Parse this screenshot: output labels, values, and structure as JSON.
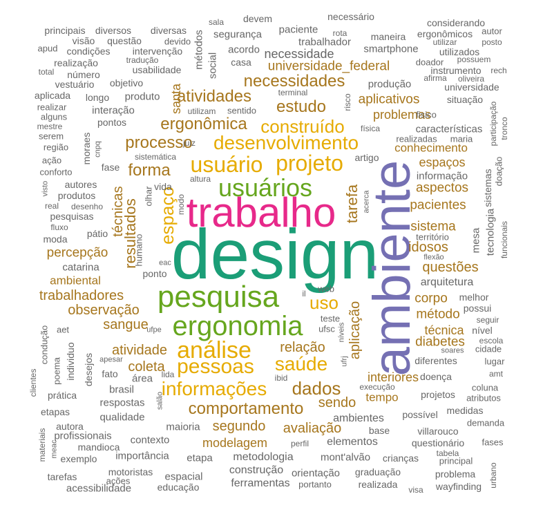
{
  "words": [
    {
      "text": "design",
      "color": "#1b9e77"
    },
    {
      "text": "ambiente",
      "color": "#7570b3"
    },
    {
      "text": "trabalho",
      "color": "#e7298a"
    },
    {
      "text": "pesquisa",
      "color": "#66a61e"
    },
    {
      "text": "ergonomia",
      "color": "#66a61e"
    },
    {
      "text": "usuários",
      "color": "#66a61e"
    },
    {
      "text": "usuário",
      "color": "#e6ab02"
    },
    {
      "text": "projeto",
      "color": "#e6ab02"
    },
    {
      "text": "desenvolvimento",
      "color": "#e6ab02"
    },
    {
      "text": "construído",
      "color": "#e6ab02"
    },
    {
      "text": "análise",
      "color": "#e6ab02"
    },
    {
      "text": "pessoas",
      "color": "#e6ab02"
    },
    {
      "text": "saúde",
      "color": "#e6ab02"
    },
    {
      "text": "informações",
      "color": "#e6ab02"
    },
    {
      "text": "uso",
      "color": "#e6ab02"
    },
    {
      "text": "espaço",
      "color": "#e6ab02"
    },
    {
      "text": "comportamento",
      "color": "#a6761d"
    },
    {
      "text": "dados",
      "color": "#a6761d"
    },
    {
      "text": "ergonômica",
      "color": "#a6761d"
    },
    {
      "text": "atividades",
      "color": "#a6761d"
    },
    {
      "text": "necessidades",
      "color": "#a6761d"
    },
    {
      "text": "estudo",
      "color": "#a6761d"
    },
    {
      "text": "processo",
      "color": "#a6761d"
    },
    {
      "text": "forma",
      "color": "#a6761d"
    },
    {
      "text": "resultados",
      "color": "#a6761d"
    },
    {
      "text": "tarefa",
      "color": "#a6761d"
    },
    {
      "text": "técnicas",
      "color": "#a6761d"
    },
    {
      "text": "aplicação",
      "color": "#a6761d"
    },
    {
      "text": "relação",
      "color": "#a6761d"
    },
    {
      "text": "sendo",
      "color": "#a6761d"
    },
    {
      "text": "segundo",
      "color": "#a6761d"
    },
    {
      "text": "avaliação",
      "color": "#a6761d"
    },
    {
      "text": "modelagem",
      "color": "#a6761d"
    },
    {
      "text": "atividade",
      "color": "#a6761d"
    },
    {
      "text": "coleta",
      "color": "#a6761d"
    },
    {
      "text": "sangue",
      "color": "#a6761d"
    },
    {
      "text": "observação",
      "color": "#a6761d"
    },
    {
      "text": "trabalhadores",
      "color": "#a6761d"
    },
    {
      "text": "percepção",
      "color": "#a6761d"
    },
    {
      "text": "ambiental",
      "color": "#a6761d"
    },
    {
      "text": "interiores",
      "color": "#a6761d"
    },
    {
      "text": "tempo",
      "color": "#a6761d"
    },
    {
      "text": "questões",
      "color": "#a6761d"
    },
    {
      "text": "idosos",
      "color": "#a6761d"
    },
    {
      "text": "sistema",
      "color": "#a6761d"
    },
    {
      "text": "pacientes",
      "color": "#a6761d"
    },
    {
      "text": "aspectos",
      "color": "#a6761d"
    },
    {
      "text": "espaços",
      "color": "#a6761d"
    },
    {
      "text": "conhecimento",
      "color": "#a6761d"
    },
    {
      "text": "problemas",
      "color": "#a6761d"
    },
    {
      "text": "aplicativos",
      "color": "#a6761d"
    },
    {
      "text": "universidade_federal",
      "color": "#a6761d"
    },
    {
      "text": "corpo",
      "color": "#a6761d"
    },
    {
      "text": "método",
      "color": "#a6761d"
    },
    {
      "text": "técnica",
      "color": "#a6761d"
    },
    {
      "text": "diabetes",
      "color": "#a6761d"
    },
    {
      "text": "santa",
      "color": "#a6761d"
    },
    {
      "text": "arquitetura",
      "color": "#666666"
    },
    {
      "text": "necessidade",
      "color": "#666666"
    },
    {
      "text": "ambientes",
      "color": "#666666"
    },
    {
      "text": "elementos",
      "color": "#666666"
    },
    {
      "text": "metodologia",
      "color": "#666666"
    },
    {
      "text": "construção",
      "color": "#666666"
    },
    {
      "text": "ferramentas",
      "color": "#666666"
    },
    {
      "text": "orientação",
      "color": "#666666"
    },
    {
      "text": "mont'alvão",
      "color": "#666666"
    },
    {
      "text": "características",
      "color": "#666666"
    },
    {
      "text": "informação",
      "color": "#666666"
    },
    {
      "text": "produção",
      "color": "#666666"
    },
    {
      "text": "segurança",
      "color": "#666666"
    },
    {
      "text": "trabalhador",
      "color": "#666666"
    },
    {
      "text": "smartphone",
      "color": "#666666"
    },
    {
      "text": "acordo",
      "color": "#666666"
    },
    {
      "text": "paciente",
      "color": "#666666"
    },
    {
      "text": "devem",
      "color": "#666666"
    },
    {
      "text": "necessário",
      "color": "#666666"
    },
    {
      "text": "considerando",
      "color": "#666666"
    },
    {
      "text": "ergonômicos",
      "color": "#666666"
    },
    {
      "text": "autor",
      "color": "#666666"
    },
    {
      "text": "principais",
      "color": "#666666"
    },
    {
      "text": "diversos",
      "color": "#666666"
    },
    {
      "text": "diversas",
      "color": "#666666"
    },
    {
      "text": "questão",
      "color": "#666666"
    },
    {
      "text": "visão",
      "color": "#666666"
    },
    {
      "text": "devido",
      "color": "#666666"
    },
    {
      "text": "apud",
      "color": "#666666"
    },
    {
      "text": "condições",
      "color": "#666666"
    },
    {
      "text": "intervenção",
      "color": "#666666"
    },
    {
      "text": "tradução",
      "color": "#666666"
    },
    {
      "text": "realização",
      "color": "#666666"
    },
    {
      "text": "usabilidade",
      "color": "#666666"
    },
    {
      "text": "total",
      "color": "#666666"
    },
    {
      "text": "número",
      "color": "#666666"
    },
    {
      "text": "vestuário",
      "color": "#666666"
    },
    {
      "text": "objetivo",
      "color": "#666666"
    },
    {
      "text": "aplicada",
      "color": "#666666"
    },
    {
      "text": "longo",
      "color": "#666666"
    },
    {
      "text": "produto",
      "color": "#666666"
    },
    {
      "text": "realizar",
      "color": "#666666"
    },
    {
      "text": "interação",
      "color": "#666666"
    },
    {
      "text": "alguns",
      "color": "#666666"
    },
    {
      "text": "pontos",
      "color": "#666666"
    },
    {
      "text": "mestre",
      "color": "#666666"
    },
    {
      "text": "serem",
      "color": "#666666"
    },
    {
      "text": "região",
      "color": "#666666"
    },
    {
      "text": "ação",
      "color": "#666666"
    },
    {
      "text": "conforto",
      "color": "#666666"
    },
    {
      "text": "sistemática",
      "color": "#666666"
    },
    {
      "text": "fase",
      "color": "#666666"
    },
    {
      "text": "autores",
      "color": "#666666"
    },
    {
      "text": "produtos",
      "color": "#666666"
    },
    {
      "text": "real",
      "color": "#666666"
    },
    {
      "text": "desenho",
      "color": "#666666"
    },
    {
      "text": "pesquisas",
      "color": "#666666"
    },
    {
      "text": "fluxo",
      "color": "#666666"
    },
    {
      "text": "moda",
      "color": "#666666"
    },
    {
      "text": "pátio",
      "color": "#666666"
    },
    {
      "text": "catarina",
      "color": "#666666"
    },
    {
      "text": "ponto",
      "color": "#666666"
    },
    {
      "text": "vida",
      "color": "#666666"
    },
    {
      "text": "altura",
      "color": "#666666"
    },
    {
      "text": "modo",
      "color": "#666666"
    },
    {
      "text": "fisico",
      "color": "#666666"
    },
    {
      "text": "situação",
      "color": "#666666"
    },
    {
      "text": "universidade",
      "color": "#666666"
    },
    {
      "text": "instrumento",
      "color": "#666666"
    },
    {
      "text": "utilizados",
      "color": "#666666"
    },
    {
      "text": "doador",
      "color": "#666666"
    },
    {
      "text": "possuem",
      "color": "#666666"
    },
    {
      "text": "utilizar",
      "color": "#666666"
    },
    {
      "text": "posto",
      "color": "#666666"
    },
    {
      "text": "rech",
      "color": "#666666"
    },
    {
      "text": "afirma",
      "color": "#666666"
    },
    {
      "text": "oliveira",
      "color": "#666666"
    },
    {
      "text": "realizadas",
      "color": "#666666"
    },
    {
      "text": "maria",
      "color": "#666666"
    },
    {
      "text": "artigo",
      "color": "#666666"
    },
    {
      "text": "física",
      "color": "#666666"
    },
    {
      "text": "terminal",
      "color": "#666666"
    },
    {
      "text": "utilizam",
      "color": "#666666"
    },
    {
      "text": "sentido",
      "color": "#666666"
    },
    {
      "text": "juiz",
      "color": "#666666"
    },
    {
      "text": "mesa",
      "color": "#666666"
    },
    {
      "text": "território",
      "color": "#666666"
    },
    {
      "text": "flexão",
      "color": "#666666"
    },
    {
      "text": "acerca",
      "color": "#666666"
    },
    {
      "text": "melhor",
      "color": "#666666"
    },
    {
      "text": "possui",
      "color": "#666666"
    },
    {
      "text": "seguir",
      "color": "#666666"
    },
    {
      "text": "nível",
      "color": "#666666"
    },
    {
      "text": "escola",
      "color": "#666666"
    },
    {
      "text": "cidade",
      "color": "#666666"
    },
    {
      "text": "soares",
      "color": "#666666"
    },
    {
      "text": "lugar",
      "color": "#666666"
    },
    {
      "text": "diferentes",
      "color": "#666666"
    },
    {
      "text": "doença",
      "color": "#666666"
    },
    {
      "text": "amt",
      "color": "#666666"
    },
    {
      "text": "coluna",
      "color": "#666666"
    },
    {
      "text": "atributos",
      "color": "#666666"
    },
    {
      "text": "projetos",
      "color": "#666666"
    },
    {
      "text": "medidas",
      "color": "#666666"
    },
    {
      "text": "demanda",
      "color": "#666666"
    },
    {
      "text": "possível",
      "color": "#666666"
    },
    {
      "text": "villarouco",
      "color": "#666666"
    },
    {
      "text": "questionário",
      "color": "#666666"
    },
    {
      "text": "fases",
      "color": "#666666"
    },
    {
      "text": "tabela",
      "color": "#666666"
    },
    {
      "text": "principal",
      "color": "#666666"
    },
    {
      "text": "problema",
      "color": "#666666"
    },
    {
      "text": "wayfinding",
      "color": "#666666"
    },
    {
      "text": "crianças",
      "color": "#666666"
    },
    {
      "text": "graduação",
      "color": "#666666"
    },
    {
      "text": "realizada",
      "color": "#666666"
    },
    {
      "text": "visa",
      "color": "#666666"
    },
    {
      "text": "portanto",
      "color": "#666666"
    },
    {
      "text": "base",
      "color": "#666666"
    },
    {
      "text": "perfil",
      "color": "#666666"
    },
    {
      "text": "execução",
      "color": "#666666"
    },
    {
      "text": "ibid",
      "color": "#666666"
    },
    {
      "text": "teste",
      "color": "#666666"
    },
    {
      "text": "ufsc",
      "color": "#666666"
    },
    {
      "text": "níveis",
      "color": "#666666"
    },
    {
      "text": "web",
      "color": "#666666"
    },
    {
      "text": "ufpe",
      "color": "#666666"
    },
    {
      "text": "eac",
      "color": "#666666"
    },
    {
      "text": "brasil",
      "color": "#666666"
    },
    {
      "text": "área",
      "color": "#666666"
    },
    {
      "text": "lida",
      "color": "#666666"
    },
    {
      "text": "respostas",
      "color": "#666666"
    },
    {
      "text": "qualidade",
      "color": "#666666"
    },
    {
      "text": "maioria",
      "color": "#666666"
    },
    {
      "text": "contexto",
      "color": "#666666"
    },
    {
      "text": "etapa",
      "color": "#666666"
    },
    {
      "text": "importância",
      "color": "#666666"
    },
    {
      "text": "espacial",
      "color": "#666666"
    },
    {
      "text": "educação",
      "color": "#666666"
    },
    {
      "text": "motoristas",
      "color": "#666666"
    },
    {
      "text": "ações",
      "color": "#666666"
    },
    {
      "text": "acessibilidade",
      "color": "#666666"
    },
    {
      "text": "tarefas",
      "color": "#666666"
    },
    {
      "text": "exemplo",
      "color": "#666666"
    },
    {
      "text": "mandioca",
      "color": "#666666"
    },
    {
      "text": "profissionais",
      "color": "#666666"
    },
    {
      "text": "autora",
      "color": "#666666"
    },
    {
      "text": "etapas",
      "color": "#666666"
    },
    {
      "text": "prática",
      "color": "#666666"
    },
    {
      "text": "fato",
      "color": "#666666"
    },
    {
      "text": "poema",
      "color": "#666666"
    },
    {
      "text": "apesar",
      "color": "#666666"
    },
    {
      "text": "aet",
      "color": "#666666"
    },
    {
      "text": "humano",
      "color": "#666666"
    },
    {
      "text": "olhar",
      "color": "#666666"
    },
    {
      "text": "métodos",
      "color": "#666666"
    },
    {
      "text": "social",
      "color": "#666666"
    },
    {
      "text": "casa",
      "color": "#666666"
    },
    {
      "text": "sala",
      "color": "#666666"
    },
    {
      "text": "rota",
      "color": "#666666"
    },
    {
      "text": "maneira",
      "color": "#666666"
    },
    {
      "text": "risco",
      "color": "#666666"
    },
    {
      "text": "tecnologia",
      "color": "#666666"
    },
    {
      "text": "funcionais",
      "color": "#666666"
    },
    {
      "text": "sistemas",
      "color": "#666666"
    },
    {
      "text": "doação",
      "color": "#666666"
    },
    {
      "text": "participação",
      "color": "#666666"
    },
    {
      "text": "tronco",
      "color": "#666666"
    },
    {
      "text": "moraes",
      "color": "#666666"
    },
    {
      "text": "cnpq",
      "color": "#666666"
    },
    {
      "text": "visto",
      "color": "#666666"
    },
    {
      "text": "condução",
      "color": "#666666"
    },
    {
      "text": "individuo",
      "color": "#666666"
    },
    {
      "text": "desejos",
      "color": "#666666"
    },
    {
      "text": "clientes",
      "color": "#666666"
    },
    {
      "text": "salão",
      "color": "#666666"
    },
    {
      "text": "materiais",
      "color": "#666666"
    },
    {
      "text": "meac",
      "color": "#666666"
    },
    {
      "text": "urbano",
      "color": "#666666"
    },
    {
      "text": "ufrj",
      "color": "#666666"
    },
    {
      "text": "il",
      "color": "#666666"
    }
  ]
}
